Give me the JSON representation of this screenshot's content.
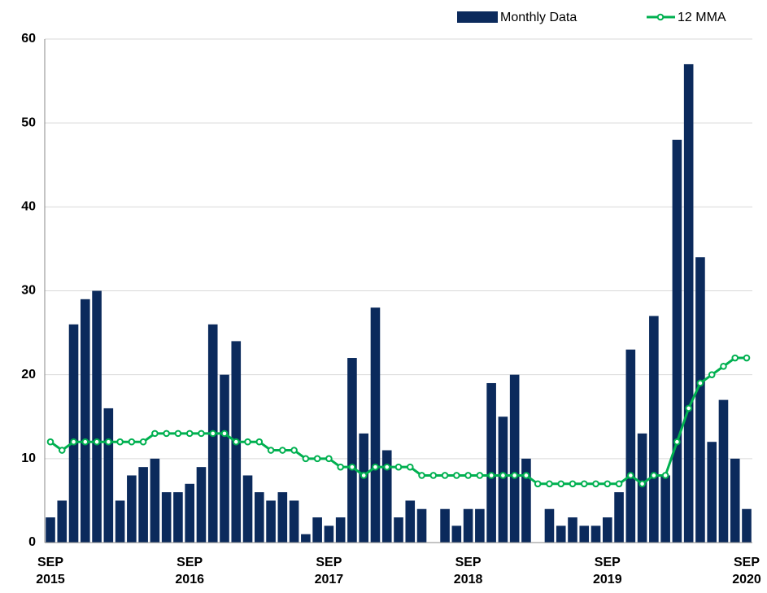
{
  "chart_data": {
    "type": "bar",
    "categories": [
      "SEP 2015",
      null,
      null,
      null,
      null,
      null,
      null,
      null,
      null,
      null,
      null,
      null,
      "SEP 2016",
      null,
      null,
      null,
      null,
      null,
      null,
      null,
      null,
      null,
      null,
      null,
      "SEP 2017",
      null,
      null,
      null,
      null,
      null,
      null,
      null,
      null,
      null,
      null,
      null,
      "SEP 2018",
      null,
      null,
      null,
      null,
      null,
      null,
      null,
      null,
      null,
      null,
      null,
      "SEP 2019",
      null,
      null,
      null,
      null,
      null,
      null,
      null,
      null,
      null,
      null,
      null,
      "SEP 2020"
    ],
    "series": [
      {
        "name": "Monthly Data",
        "type": "bar",
        "color": "#0b2a5c",
        "values": [
          3,
          5,
          26,
          29,
          30,
          16,
          5,
          8,
          9,
          10,
          6,
          6,
          7,
          9,
          26,
          20,
          24,
          8,
          6,
          5,
          6,
          5,
          1,
          3,
          2,
          3,
          22,
          13,
          28,
          11,
          3,
          5,
          4,
          0,
          4,
          2,
          4,
          4,
          19,
          15,
          20,
          10,
          0,
          4,
          2,
          3,
          2,
          2,
          3,
          6,
          23,
          13,
          27,
          8,
          48,
          57,
          34,
          12,
          17,
          10,
          4
        ]
      },
      {
        "name": "12 MMA",
        "type": "line",
        "color": "#00b050",
        "values": [
          12,
          11,
          12,
          12,
          12,
          12,
          12,
          12,
          12,
          13,
          13,
          13,
          13,
          13,
          13,
          13,
          12,
          12,
          12,
          11,
          11,
          11,
          10,
          10,
          10,
          9,
          9,
          8,
          9,
          9,
          9,
          9,
          8,
          8,
          8,
          8,
          8,
          8,
          8,
          8,
          8,
          8,
          7,
          7,
          7,
          7,
          7,
          7,
          7,
          7,
          8,
          7,
          8,
          8,
          12,
          16,
          19,
          20,
          21,
          22,
          22
        ]
      }
    ],
    "ylim": [
      0,
      60
    ],
    "yticks": [
      0,
      10,
      20,
      30,
      40,
      50,
      60
    ],
    "grid": true,
    "legend": "top-right"
  }
}
